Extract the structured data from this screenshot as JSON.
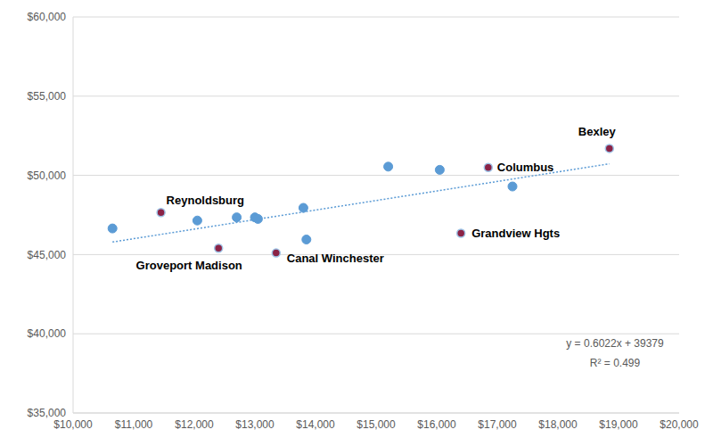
{
  "chart_data": {
    "type": "scatter",
    "x": [
      10650,
      11450,
      12050,
      12400,
      12700,
      13000,
      13050,
      13350,
      13800,
      13850,
      15200,
      16050,
      16850,
      16400,
      17250,
      18850
    ],
    "values": [
      46650,
      47650,
      47150,
      45400,
      47350,
      47350,
      47250,
      45100,
      47950,
      45950,
      50550,
      50350,
      50500,
      46350,
      49300,
      51700
    ],
    "labels": [
      null,
      "Reynoldsburg",
      null,
      "Groveport Madison",
      null,
      null,
      null,
      "Canal Winchester",
      null,
      null,
      null,
      null,
      "Columbus",
      "Grandview Hgts",
      null,
      "Bexley"
    ],
    "colors": [
      "#5b9bd5",
      "#8b2346",
      "#5b9bd5",
      "#8b2346",
      "#5b9bd5",
      "#5b9bd5",
      "#5b9bd5",
      "#8b2346",
      "#5b9bd5",
      "#5b9bd5",
      "#5b9bd5",
      "#5b9bd5",
      "#8b2346",
      "#8b2346",
      "#5b9bd5",
      "#8b2346"
    ],
    "marker": "circle",
    "trendline": {
      "slope": 0.6022,
      "intercept": 39379,
      "color": "#5b9bd5",
      "line_style": "dotted"
    },
    "annotations": [
      "y = 0.6022x + 39379",
      "R² = 0.499"
    ],
    "xlim": [
      10000,
      20000
    ],
    "xticks": [
      {
        "value": 10000,
        "label": "$10,000"
      },
      {
        "value": 11000,
        "label": "$11,000"
      },
      {
        "value": 12000,
        "label": "$12,000"
      },
      {
        "value": 13000,
        "label": "$13,000"
      },
      {
        "value": 14000,
        "label": "$14,000"
      },
      {
        "value": 15000,
        "label": "$15,000"
      },
      {
        "value": 16000,
        "label": "$16,000"
      },
      {
        "value": 17000,
        "label": "$17,000"
      },
      {
        "value": 18000,
        "label": "$18,000"
      },
      {
        "value": 19000,
        "label": "$19,000"
      },
      {
        "value": 20000,
        "label": "$20,000"
      }
    ],
    "ylim": [
      35000,
      60000
    ],
    "yticks": [
      {
        "value": 35000,
        "label": "$35,000"
      },
      {
        "value": 40000,
        "label": "$40,000"
      },
      {
        "value": 45000,
        "label": "$45,000"
      },
      {
        "value": 50000,
        "label": "$50,000"
      },
      {
        "value": 55000,
        "label": "$55,000"
      },
      {
        "value": 60000,
        "label": "$60,000"
      }
    ],
    "grid": true
  }
}
